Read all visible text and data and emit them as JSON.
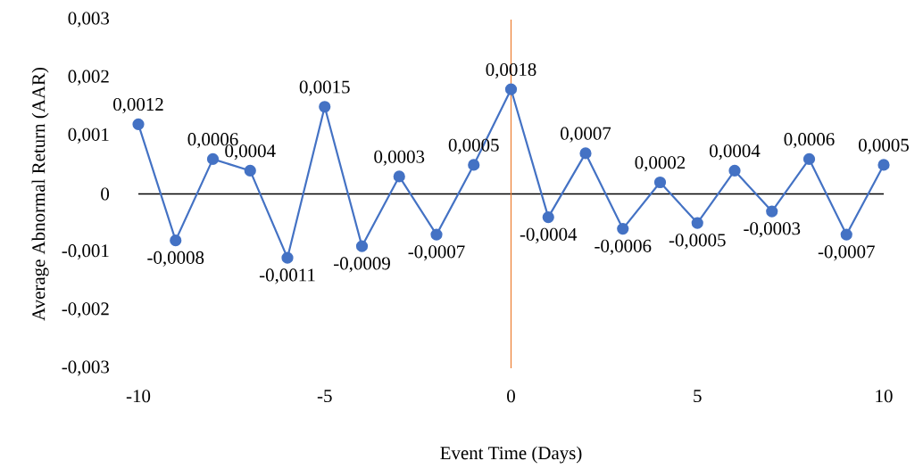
{
  "chart_data": {
    "type": "line",
    "xlabel": "Event Time (Days)",
    "ylabel": "Average Abnormal Return (AAR)",
    "x": [
      -10,
      -9,
      -8,
      -7,
      -6,
      -5,
      -4,
      -3,
      -2,
      -1,
      0,
      1,
      2,
      3,
      4,
      5,
      6,
      7,
      8,
      9,
      10
    ],
    "values": [
      0.0012,
      -0.0008,
      0.0006,
      0.0004,
      -0.0011,
      0.0015,
      -0.0009,
      0.0003,
      -0.0007,
      0.0005,
      0.0018,
      -0.0004,
      0.0007,
      -0.0006,
      0.0002,
      -0.0005,
      0.0004,
      -0.0003,
      0.0006,
      -0.0007,
      0.0005
    ],
    "value_labels": [
      "0,0012",
      "-0,0008",
      "0,0006",
      "0,0004",
      "-0,0011",
      "0,0015",
      "-0,0009",
      "0,0003",
      "-0,0007",
      "0,0005",
      "0,0018",
      "-0,0004",
      "0,0007",
      "-0,0006",
      "0,0002",
      "-0,0005",
      "0,0004",
      "-0,0003",
      "0,0006",
      "-0,0007",
      "0,0005"
    ],
    "color": "#4472c4",
    "marker": "circle",
    "xlim": [
      -10,
      10
    ],
    "ylim": [
      -0.003,
      0.003
    ],
    "xticks": [
      -10,
      -5,
      0,
      5,
      10
    ],
    "yticks": [
      {
        "value": -0.003,
        "label": "-0,003"
      },
      {
        "value": -0.002,
        "label": "-0,002"
      },
      {
        "value": -0.001,
        "label": "-0,001"
      },
      {
        "value": 0,
        "label": "0"
      },
      {
        "value": 0.001,
        "label": "0,001"
      },
      {
        "value": 0.002,
        "label": "0,002"
      },
      {
        "value": 0.003,
        "label": "0,003"
      }
    ],
    "ref_lines": [
      {
        "axis": "x",
        "value": 0,
        "color": "#ed7d31"
      }
    ]
  }
}
